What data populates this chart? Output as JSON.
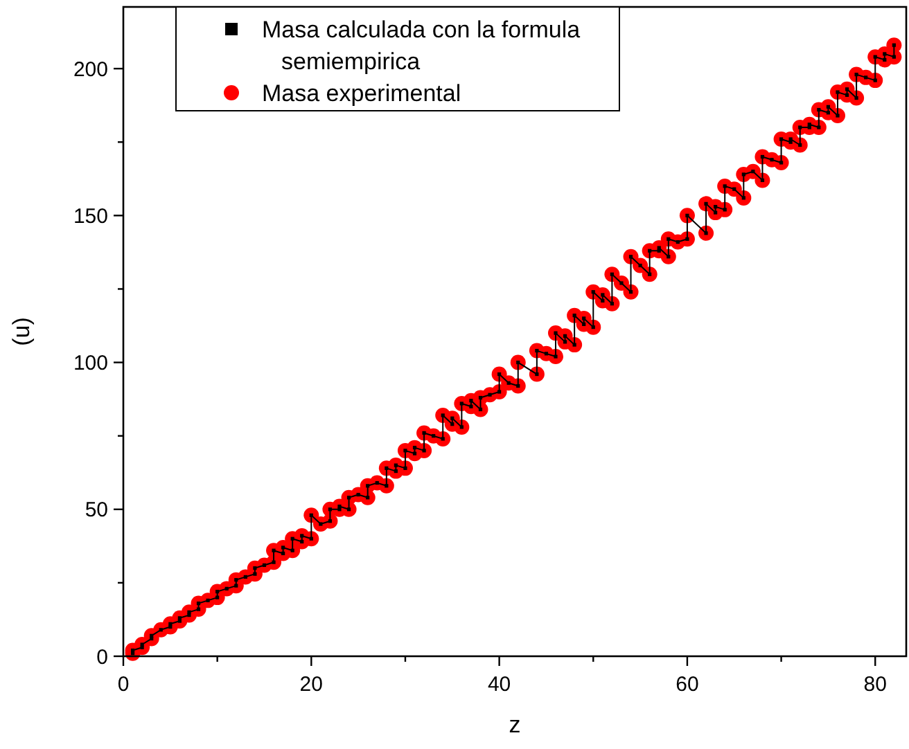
{
  "chart_data": {
    "type": "scatter",
    "xlabel": "z",
    "ylabel": "(u)",
    "xlim": [
      0,
      83.3
    ],
    "ylim": [
      0,
      221
    ],
    "xticks": [
      0,
      {
        "value": 10,
        "label": null
      },
      20,
      {
        "value": 30,
        "label": null
      },
      40,
      {
        "value": 50,
        "label": null
      },
      60,
      {
        "value": 70,
        "label": null
      },
      80
    ],
    "yticks": [
      0,
      {
        "value": 25,
        "label": null
      },
      50,
      {
        "value": 75,
        "label": null
      },
      100,
      {
        "value": 125,
        "label": null
      },
      150,
      {
        "value": 175,
        "label": null
      },
      200
    ],
    "legend": "top",
    "grid": false,
    "x": [
      1,
      1,
      2,
      2,
      3,
      3,
      4,
      5,
      5,
      6,
      6,
      7,
      7,
      8,
      8,
      9,
      10,
      10,
      11,
      12,
      12,
      13,
      14,
      14,
      15,
      16,
      16,
      17,
      17,
      18,
      18,
      19,
      19,
      20,
      20,
      21,
      22,
      22,
      23,
      23,
      24,
      24,
      25,
      26,
      26,
      27,
      28,
      28,
      29,
      29,
      30,
      30,
      31,
      31,
      32,
      32,
      33,
      34,
      34,
      35,
      35,
      36,
      36,
      37,
      37,
      38,
      38,
      39,
      40,
      40,
      41,
      42,
      42,
      44,
      44,
      45,
      46,
      46,
      47,
      47,
      48,
      48,
      49,
      49,
      50,
      50,
      51,
      51,
      52,
      52,
      53,
      54,
      54,
      55,
      56,
      56,
      57,
      57,
      58,
      58,
      59,
      60,
      60,
      62,
      62,
      63,
      63,
      64,
      64,
      65,
      66,
      66,
      67,
      68,
      68,
      69,
      70,
      70,
      71,
      71,
      72,
      72,
      73,
      73,
      74,
      74,
      75,
      75,
      76,
      76,
      77,
      77,
      78,
      78,
      79,
      80,
      80,
      81,
      81,
      82,
      82
    ],
    "series": [
      {
        "name": "Masa experimental",
        "marker": "circle",
        "color": "#ff0000",
        "values": [
          1,
          2,
          3,
          4,
          6,
          7,
          9,
          10,
          11,
          12,
          13,
          14,
          15,
          16,
          18,
          19,
          20,
          22,
          23,
          24,
          26,
          27,
          28,
          30,
          31,
          32,
          36,
          35,
          37,
          36,
          40,
          39,
          41,
          40,
          48,
          45,
          46,
          50,
          50,
          51,
          50,
          54,
          55,
          54,
          58,
          59,
          58,
          64,
          63,
          65,
          64,
          70,
          69,
          71,
          70,
          76,
          75,
          74,
          82,
          79,
          81,
          78,
          86,
          85,
          87,
          84,
          88,
          89,
          90,
          96,
          93,
          92,
          100,
          96,
          104,
          103,
          102,
          110,
          107,
          109,
          106,
          116,
          113,
          115,
          112,
          124,
          121,
          123,
          120,
          130,
          127,
          124,
          136,
          133,
          130,
          138,
          138,
          139,
          136,
          142,
          141,
          142,
          150,
          144,
          154,
          151,
          153,
          152,
          160,
          159,
          156,
          164,
          165,
          162,
          170,
          169,
          168,
          176,
          175,
          176,
          174,
          180,
          180,
          181,
          180,
          186,
          185,
          187,
          184,
          192,
          191,
          193,
          190,
          198,
          197,
          196,
          204,
          203,
          205,
          204,
          208
        ]
      },
      {
        "name": "Masa calculada con la formula semiempirica",
        "type": "line",
        "marker": "square",
        "color": "#000000",
        "values": [
          1,
          2,
          3,
          4,
          6,
          7,
          9,
          10,
          11,
          12,
          13,
          14,
          15,
          16,
          18,
          19,
          20,
          22,
          23,
          24,
          26,
          27,
          28,
          30,
          31,
          32,
          36,
          35,
          37,
          36,
          40,
          39,
          41,
          40,
          48,
          45,
          46,
          50,
          50,
          51,
          50,
          54,
          55,
          54,
          58,
          59,
          58,
          64,
          63,
          65,
          64,
          70,
          69,
          71,
          70,
          76,
          75,
          74,
          82,
          79,
          81,
          78,
          86,
          85,
          87,
          84,
          88,
          89,
          90,
          96,
          93,
          92,
          100,
          96,
          104,
          103,
          102,
          110,
          107,
          109,
          106,
          116,
          113,
          115,
          112,
          124,
          121,
          123,
          120,
          130,
          127,
          124,
          136,
          133,
          130,
          138,
          138,
          139,
          136,
          142,
          141,
          142,
          150,
          144,
          154,
          151,
          153,
          152,
          160,
          159,
          156,
          164,
          165,
          162,
          170,
          169,
          168,
          176,
          175,
          176,
          174,
          180,
          180,
          181,
          180,
          186,
          185,
          187,
          184,
          192,
          191,
          193,
          190,
          198,
          197,
          196,
          204,
          203,
          205,
          204,
          208
        ]
      }
    ]
  }
}
